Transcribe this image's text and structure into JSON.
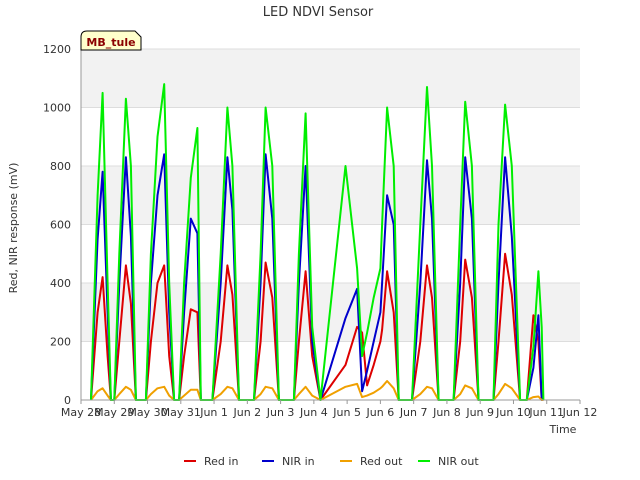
{
  "chart_data": {
    "type": "line",
    "title": "LED NDVI Sensor",
    "xlabel": "Time",
    "ylabel": "Red, NIR response (mV)",
    "site_label": "MB_tule",
    "ylim": [
      0,
      1200
    ],
    "xlim": [
      0,
      15
    ],
    "yticks": [
      0,
      200,
      400,
      600,
      800,
      1000,
      1200
    ],
    "xticks": [
      {
        "pos": 0,
        "label": "May 28"
      },
      {
        "pos": 1,
        "label": "May 29"
      },
      {
        "pos": 2,
        "label": "May 30"
      },
      {
        "pos": 3,
        "label": "May 31"
      },
      {
        "pos": 4,
        "label": "Jun 1"
      },
      {
        "pos": 5,
        "label": "Jun 2"
      },
      {
        "pos": 6,
        "label": "Jun 3"
      },
      {
        "pos": 7,
        "label": "Jun 4"
      },
      {
        "pos": 8,
        "label": "Jun 5"
      },
      {
        "pos": 9,
        "label": "Jun 6"
      },
      {
        "pos": 10,
        "label": "Jun 7"
      },
      {
        "pos": 11,
        "label": "Jun 8"
      },
      {
        "pos": 12,
        "label": "Jun 9"
      },
      {
        "pos": 13,
        "label": "Jun 10"
      },
      {
        "pos": 14,
        "label": "Jun 11"
      },
      {
        "pos": 15,
        "label": "Jun 12"
      }
    ],
    "grid": true,
    "legend_position": "bottom",
    "series": [
      {
        "name": "Red in",
        "color": "#dd0000",
        "x": [
          0.3,
          0.5,
          0.65,
          0.8,
          0.9,
          1.0,
          1.15,
          1.35,
          1.5,
          1.65,
          1.8,
          1.95,
          2.1,
          2.3,
          2.5,
          2.65,
          2.8,
          2.95,
          3.1,
          3.3,
          3.5,
          3.6,
          3.8,
          3.95,
          4.2,
          4.4,
          4.55,
          4.75,
          4.95,
          5.2,
          5.4,
          5.55,
          5.75,
          5.95,
          6.2,
          6.4,
          6.55,
          6.75,
          6.95,
          7.2,
          7.95,
          8.3,
          8.45,
          8.6,
          8.8,
          9.0,
          9.05,
          9.2,
          9.4,
          9.55,
          9.75,
          9.95,
          10.2,
          10.4,
          10.55,
          10.75,
          10.95,
          11.2,
          11.4,
          11.55,
          11.75,
          11.95,
          12.2,
          12.4,
          12.55,
          12.75,
          12.95,
          13.2,
          13.4,
          13.6,
          13.75,
          13.85,
          13.9
        ],
        "y": [
          0,
          300,
          420,
          150,
          0,
          0,
          200,
          460,
          330,
          0,
          0,
          0,
          200,
          400,
          460,
          150,
          0,
          0,
          150,
          310,
          300,
          0,
          0,
          0,
          200,
          460,
          360,
          0,
          0,
          0,
          200,
          470,
          350,
          0,
          0,
          0,
          200,
          440,
          150,
          0,
          120,
          250,
          230,
          50,
          120,
          200,
          240,
          440,
          300,
          0,
          0,
          0,
          200,
          460,
          350,
          0,
          0,
          0,
          200,
          480,
          350,
          0,
          0,
          0,
          200,
          500,
          360,
          0,
          0,
          290,
          200,
          0,
          0
        ]
      },
      {
        "name": "NIR in",
        "color": "#0000cc",
        "x": [
          0.3,
          0.5,
          0.65,
          0.8,
          0.9,
          1.0,
          1.15,
          1.35,
          1.5,
          1.65,
          1.8,
          1.95,
          2.1,
          2.3,
          2.5,
          2.65,
          2.8,
          2.95,
          3.1,
          3.3,
          3.5,
          3.6,
          3.8,
          3.95,
          4.2,
          4.4,
          4.55,
          4.75,
          4.95,
          5.2,
          5.4,
          5.55,
          5.75,
          5.95,
          6.2,
          6.4,
          6.55,
          6.75,
          6.95,
          7.2,
          7.95,
          8.3,
          8.45,
          8.6,
          8.8,
          9.0,
          9.05,
          9.2,
          9.4,
          9.55,
          9.75,
          9.95,
          10.2,
          10.4,
          10.55,
          10.75,
          10.95,
          11.2,
          11.4,
          11.55,
          11.75,
          11.95,
          12.2,
          12.4,
          12.55,
          12.75,
          12.95,
          13.2,
          13.4,
          13.6,
          13.75,
          13.85,
          13.9
        ],
        "y": [
          0,
          550,
          780,
          300,
          0,
          0,
          400,
          830,
          560,
          0,
          0,
          0,
          400,
          700,
          840,
          300,
          0,
          0,
          300,
          620,
          570,
          0,
          0,
          0,
          400,
          830,
          650,
          0,
          0,
          0,
          400,
          840,
          620,
          0,
          0,
          0,
          400,
          800,
          200,
          0,
          280,
          380,
          30,
          100,
          200,
          300,
          400,
          700,
          600,
          0,
          0,
          0,
          400,
          820,
          620,
          0,
          0,
          0,
          400,
          830,
          620,
          0,
          0,
          0,
          400,
          830,
          560,
          0,
          0,
          110,
          290,
          0,
          0
        ]
      },
      {
        "name": "Red out",
        "color": "#f0a000",
        "x": [
          0.3,
          0.5,
          0.65,
          0.8,
          0.9,
          1.0,
          1.15,
          1.35,
          1.5,
          1.65,
          1.8,
          1.95,
          2.1,
          2.3,
          2.5,
          2.65,
          2.8,
          2.95,
          3.1,
          3.3,
          3.5,
          3.6,
          3.8,
          3.95,
          4.2,
          4.4,
          4.55,
          4.75,
          4.95,
          5.2,
          5.4,
          5.55,
          5.75,
          5.95,
          6.2,
          6.4,
          6.55,
          6.75,
          6.95,
          7.2,
          7.95,
          8.3,
          8.45,
          8.6,
          8.8,
          9.0,
          9.05,
          9.2,
          9.4,
          9.55,
          9.75,
          9.95,
          10.2,
          10.4,
          10.55,
          10.75,
          10.95,
          11.2,
          11.4,
          11.55,
          11.75,
          11.95,
          12.2,
          12.4,
          12.55,
          12.75,
          12.95,
          13.2,
          13.4,
          13.6,
          13.75,
          13.85,
          13.9
        ],
        "y": [
          0,
          30,
          40,
          15,
          0,
          0,
          20,
          45,
          35,
          0,
          0,
          0,
          20,
          40,
          45,
          15,
          0,
          0,
          15,
          35,
          35,
          0,
          0,
          0,
          20,
          45,
          40,
          0,
          0,
          0,
          20,
          45,
          40,
          0,
          0,
          0,
          20,
          45,
          15,
          0,
          45,
          55,
          10,
          15,
          25,
          40,
          45,
          65,
          40,
          0,
          0,
          0,
          20,
          45,
          40,
          0,
          0,
          0,
          20,
          50,
          40,
          0,
          0,
          0,
          20,
          55,
          40,
          0,
          0,
          10,
          12,
          0,
          0
        ]
      },
      {
        "name": "NIR out",
        "color": "#00ee00",
        "x": [
          0.3,
          0.5,
          0.65,
          0.8,
          0.9,
          1.0,
          1.15,
          1.35,
          1.5,
          1.65,
          1.8,
          1.95,
          2.1,
          2.3,
          2.5,
          2.65,
          2.8,
          2.95,
          3.1,
          3.3,
          3.5,
          3.6,
          3.8,
          3.95,
          4.2,
          4.4,
          4.55,
          4.75,
          4.95,
          5.2,
          5.4,
          5.55,
          5.75,
          5.95,
          6.2,
          6.4,
          6.55,
          6.75,
          6.95,
          7.2,
          7.95,
          8.3,
          8.45,
          8.6,
          8.8,
          9.0,
          9.05,
          9.2,
          9.4,
          9.55,
          9.75,
          9.95,
          10.2,
          10.4,
          10.55,
          10.75,
          10.95,
          11.2,
          11.4,
          11.55,
          11.75,
          11.95,
          12.2,
          12.4,
          12.55,
          12.75,
          12.95,
          13.2,
          13.4,
          13.6,
          13.75,
          13.85,
          13.9
        ],
        "y": [
          0,
          700,
          1050,
          400,
          0,
          0,
          500,
          1030,
          800,
          0,
          0,
          0,
          500,
          900,
          1080,
          400,
          0,
          0,
          400,
          760,
          930,
          0,
          0,
          0,
          500,
          1000,
          800,
          0,
          0,
          0,
          500,
          1000,
          800,
          0,
          0,
          0,
          500,
          980,
          250,
          0,
          800,
          450,
          150,
          230,
          350,
          450,
          600,
          1000,
          800,
          0,
          0,
          0,
          600,
          1070,
          800,
          0,
          0,
          0,
          600,
          1020,
          800,
          0,
          0,
          0,
          600,
          1010,
          800,
          0,
          0,
          180,
          440,
          250,
          0
        ]
      }
    ]
  }
}
